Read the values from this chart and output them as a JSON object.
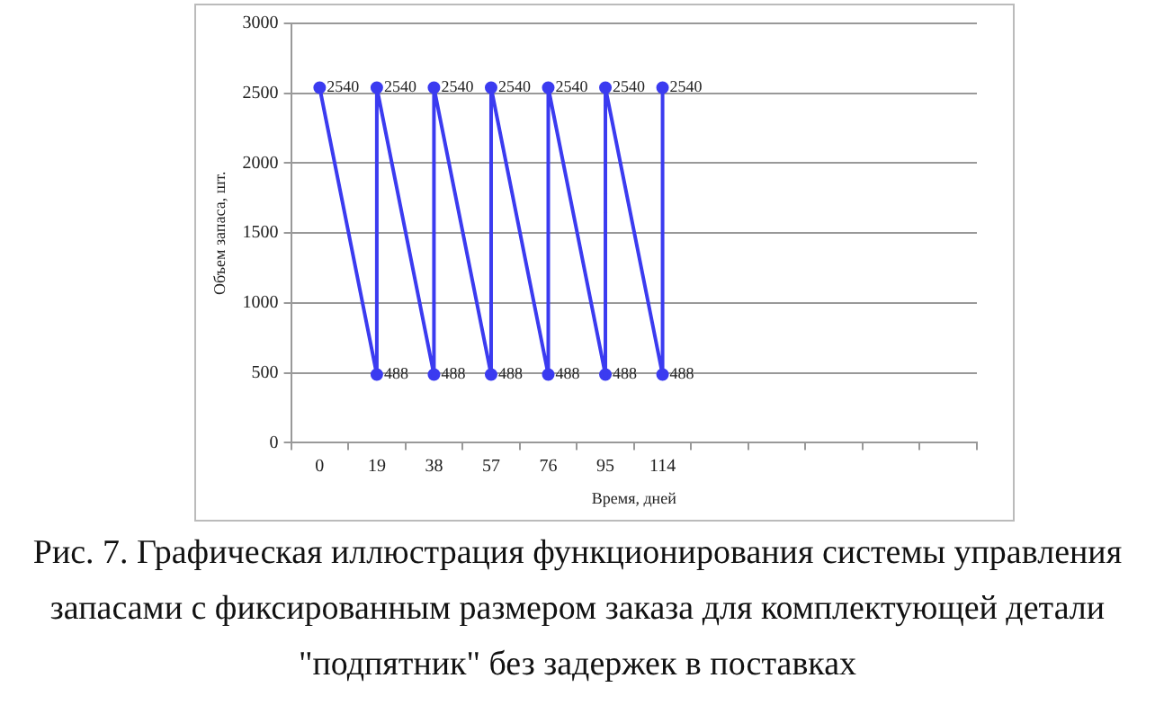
{
  "chart_data": {
    "type": "line",
    "title": "Рис. 7. Графическая иллюстрация функционирования системы управления запасами с фиксированным размером заказа для комплектующей детали \"подпятник\" без задержек в поставках",
    "xlabel": "Время, дней",
    "ylabel": "Объем запаса, шт.",
    "categories": [
      "0",
      "19",
      "38",
      "57",
      "76",
      "95",
      "114",
      null,
      null,
      null,
      null,
      null
    ],
    "series": [
      {
        "color": "#3b3bf0",
        "x": [
          "0",
          "19",
          "19",
          "38",
          "38",
          "57",
          "57",
          "76",
          "76",
          "95",
          "95",
          "114",
          "114"
        ],
        "values": [
          2540,
          488,
          2540,
          488,
          2540,
          488,
          2540,
          488,
          2540,
          488,
          2540,
          488,
          2540
        ]
      }
    ],
    "ylim": [
      0,
      3000
    ],
    "yticks": [
      0,
      500,
      1000,
      1500,
      2000,
      2500,
      3000
    ],
    "grid": "y",
    "legend": false,
    "marker": "circle",
    "line_style": "solid",
    "data_labels": true
  }
}
